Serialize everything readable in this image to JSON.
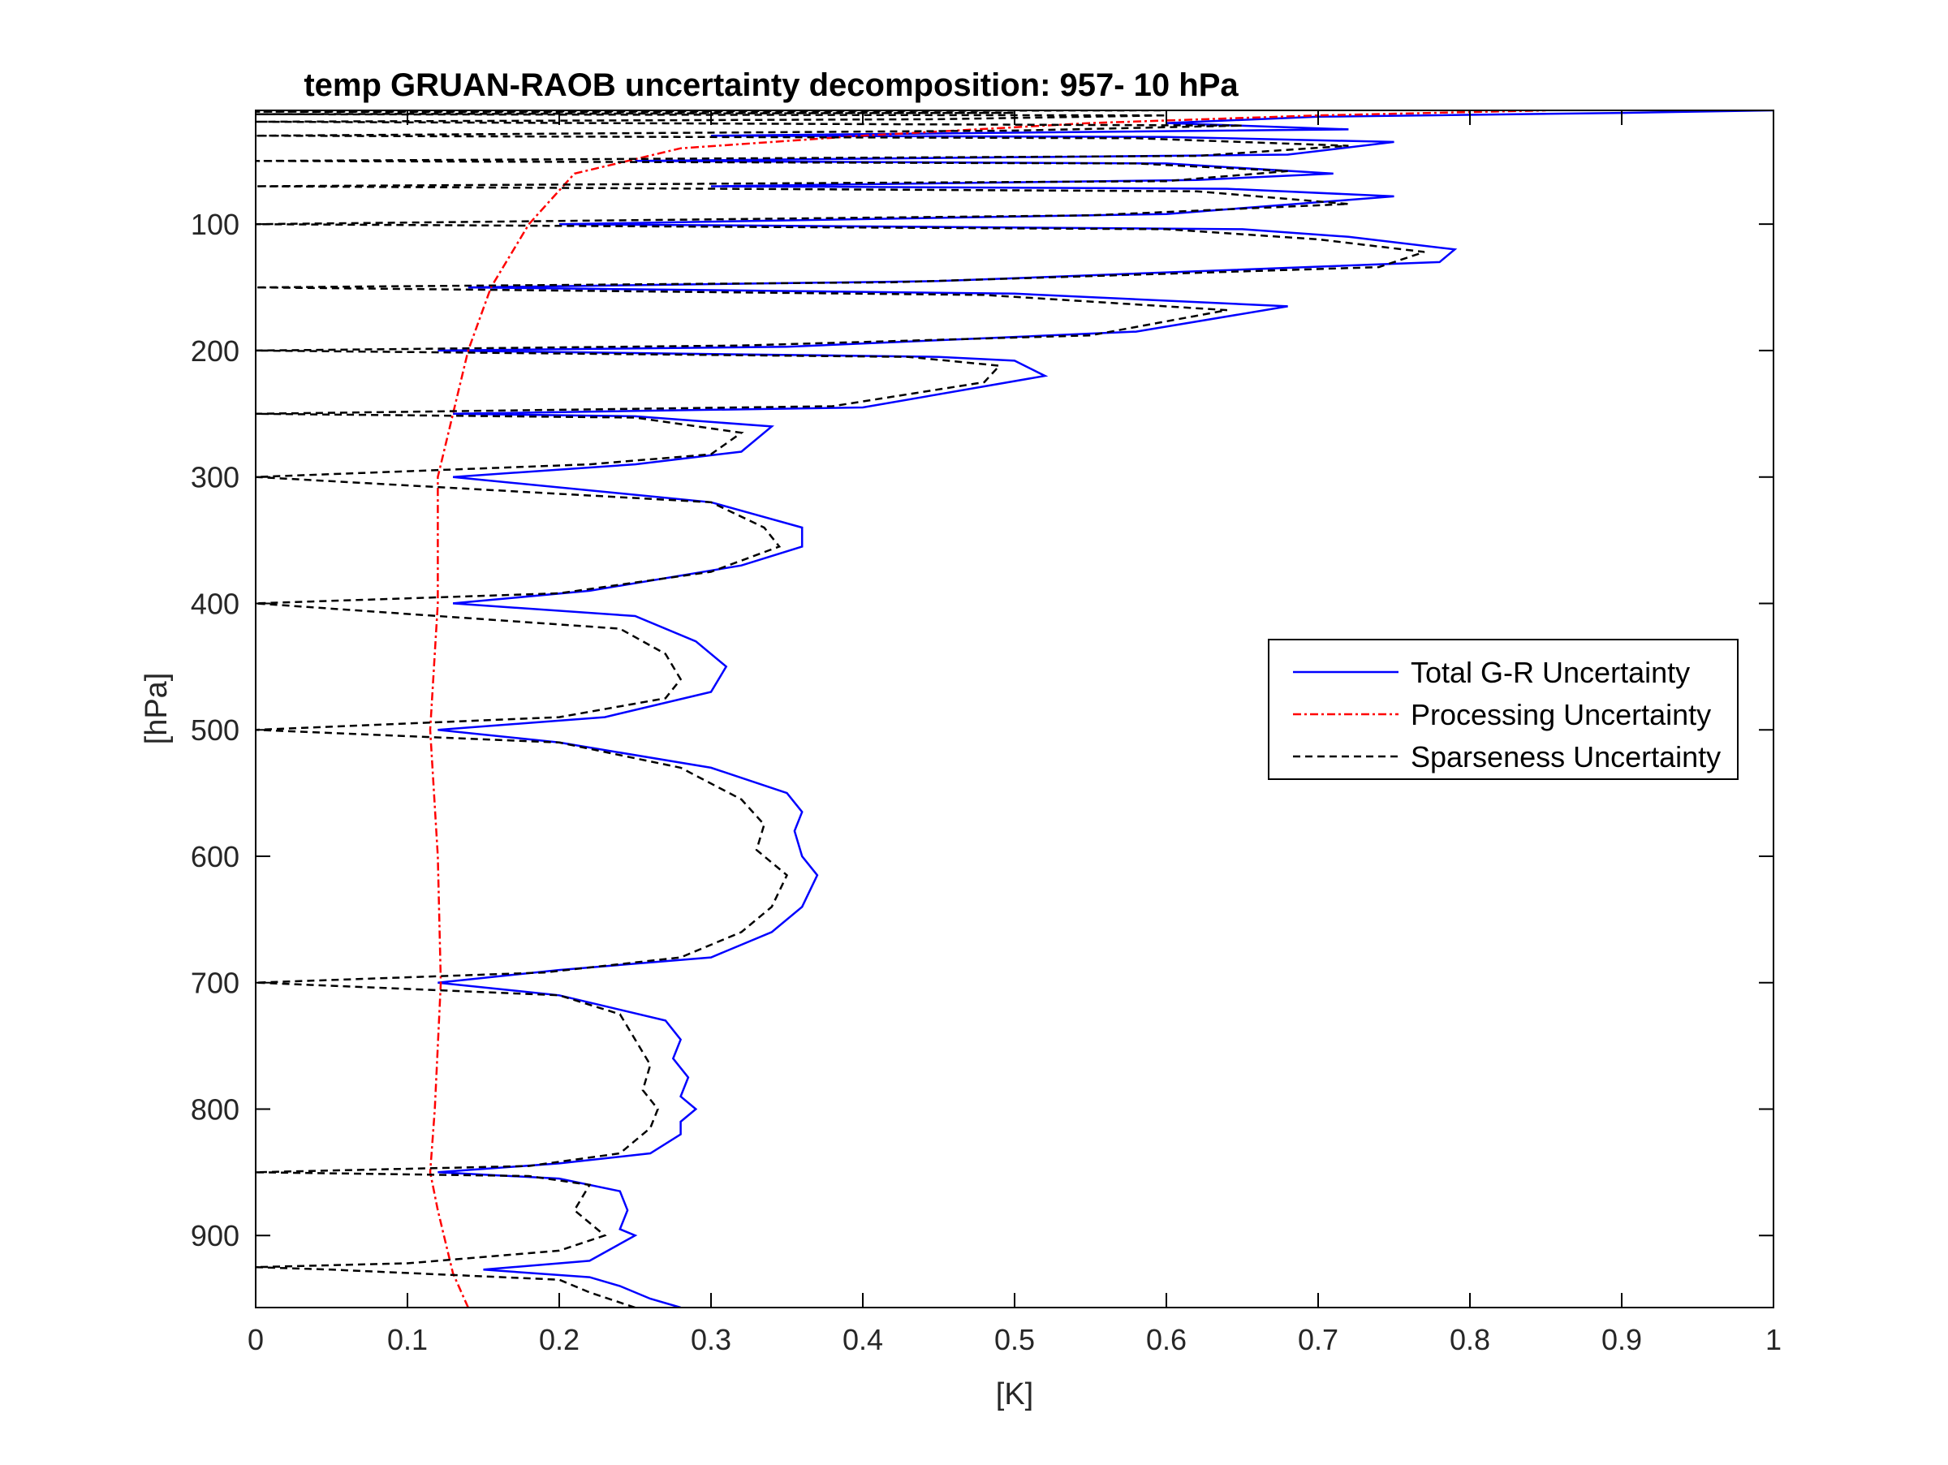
{
  "chart_data": {
    "type": "line",
    "title": "temp GRUAN-RAOB uncertainty decomposition:   957-  10 hPa",
    "xlabel": "[K]",
    "ylabel": "[hPa]",
    "xlim": [
      0,
      1
    ],
    "ylim": [
      10,
      957
    ],
    "y_reversed": true,
    "grid": false,
    "legend_position": "right-center",
    "xticks": [
      0,
      0.1,
      0.2,
      0.3,
      0.4,
      0.5,
      0.6,
      0.7,
      0.8,
      0.9,
      1
    ],
    "xtick_labels": [
      "0",
      "0.1",
      "0.2",
      "0.3",
      "0.4",
      "0.5",
      "0.6",
      "0.7",
      "0.8",
      "0.9",
      "1"
    ],
    "yticks": [
      100,
      200,
      300,
      400,
      500,
      600,
      700,
      800,
      900
    ],
    "ytick_labels": [
      "100",
      "200",
      "300",
      "400",
      "500",
      "600",
      "700",
      "800",
      "900"
    ],
    "series": [
      {
        "name": "Total G-R Uncertainty",
        "color": "#0000ff",
        "style": "solid",
        "points": [
          [
            0.28,
            957
          ],
          [
            0.26,
            950
          ],
          [
            0.24,
            940
          ],
          [
            0.22,
            933
          ],
          [
            0.15,
            927
          ],
          [
            0.22,
            920
          ],
          [
            0.25,
            900
          ],
          [
            0.24,
            895
          ],
          [
            0.245,
            880
          ],
          [
            0.24,
            865
          ],
          [
            0.2,
            855
          ],
          [
            0.12,
            850
          ],
          [
            0.2,
            843
          ],
          [
            0.26,
            835
          ],
          [
            0.28,
            820
          ],
          [
            0.28,
            810
          ],
          [
            0.29,
            800
          ],
          [
            0.28,
            790
          ],
          [
            0.285,
            775
          ],
          [
            0.275,
            760
          ],
          [
            0.28,
            745
          ],
          [
            0.27,
            730
          ],
          [
            0.2,
            710
          ],
          [
            0.12,
            700
          ],
          [
            0.2,
            690
          ],
          [
            0.3,
            680
          ],
          [
            0.34,
            660
          ],
          [
            0.36,
            640
          ],
          [
            0.37,
            615
          ],
          [
            0.36,
            600
          ],
          [
            0.355,
            580
          ],
          [
            0.36,
            565
          ],
          [
            0.35,
            550
          ],
          [
            0.3,
            530
          ],
          [
            0.2,
            510
          ],
          [
            0.12,
            500
          ],
          [
            0.23,
            490
          ],
          [
            0.3,
            470
          ],
          [
            0.31,
            450
          ],
          [
            0.29,
            430
          ],
          [
            0.25,
            410
          ],
          [
            0.13,
            400
          ],
          [
            0.22,
            390
          ],
          [
            0.32,
            370
          ],
          [
            0.36,
            355
          ],
          [
            0.36,
            340
          ],
          [
            0.3,
            320
          ],
          [
            0.13,
            300
          ],
          [
            0.25,
            290
          ],
          [
            0.32,
            280
          ],
          [
            0.34,
            260
          ],
          [
            0.25,
            252
          ],
          [
            0.13,
            250
          ],
          [
            0.4,
            245
          ],
          [
            0.52,
            220
          ],
          [
            0.5,
            208
          ],
          [
            0.45,
            205
          ],
          [
            0.12,
            200
          ],
          [
            0.35,
            197
          ],
          [
            0.58,
            185
          ],
          [
            0.68,
            165
          ],
          [
            0.5,
            155
          ],
          [
            0.14,
            150
          ],
          [
            0.45,
            145
          ],
          [
            0.78,
            130
          ],
          [
            0.79,
            120
          ],
          [
            0.72,
            110
          ],
          [
            0.65,
            104
          ],
          [
            0.2,
            100
          ],
          [
            0.6,
            92
          ],
          [
            0.75,
            78
          ],
          [
            0.64,
            72
          ],
          [
            0.3,
            70
          ],
          [
            0.62,
            65
          ],
          [
            0.71,
            60
          ],
          [
            0.6,
            52
          ],
          [
            0.25,
            50
          ],
          [
            0.68,
            45
          ],
          [
            0.75,
            35
          ],
          [
            0.6,
            31
          ],
          [
            0.3,
            30
          ],
          [
            0.72,
            25
          ],
          [
            0.6,
            20
          ],
          [
            0.7,
            15
          ],
          [
            0.9,
            12
          ],
          [
            1.0,
            10
          ]
        ]
      },
      {
        "name": "Processing Uncertainty",
        "color": "#ff0000",
        "style": "dash-dot",
        "points": [
          [
            0.14,
            957
          ],
          [
            0.13,
            930
          ],
          [
            0.12,
            880
          ],
          [
            0.115,
            850
          ],
          [
            0.118,
            800
          ],
          [
            0.12,
            750
          ],
          [
            0.122,
            700
          ],
          [
            0.12,
            600
          ],
          [
            0.115,
            500
          ],
          [
            0.12,
            400
          ],
          [
            0.12,
            300
          ],
          [
            0.13,
            250
          ],
          [
            0.14,
            200
          ],
          [
            0.155,
            150
          ],
          [
            0.18,
            100
          ],
          [
            0.21,
            60
          ],
          [
            0.28,
            40
          ],
          [
            0.4,
            30
          ],
          [
            0.55,
            20
          ],
          [
            0.7,
            14
          ],
          [
            0.85,
            10
          ]
        ]
      },
      {
        "name": "Sparseness Uncertainty",
        "color": "#000000",
        "style": "dashed",
        "points": [
          [
            0.25,
            957
          ],
          [
            0.22,
            945
          ],
          [
            0.2,
            935
          ],
          [
            0.05,
            927
          ],
          [
            0.0,
            925
          ],
          [
            0.1,
            922
          ],
          [
            0.2,
            912
          ],
          [
            0.23,
            900
          ],
          [
            0.21,
            880
          ],
          [
            0.22,
            860
          ],
          [
            0.18,
            853
          ],
          [
            0.0,
            850
          ],
          [
            0.18,
            845
          ],
          [
            0.24,
            835
          ],
          [
            0.26,
            815
          ],
          [
            0.265,
            800
          ],
          [
            0.255,
            785
          ],
          [
            0.26,
            765
          ],
          [
            0.25,
            745
          ],
          [
            0.24,
            725
          ],
          [
            0.2,
            710
          ],
          [
            0.0,
            700
          ],
          [
            0.19,
            692
          ],
          [
            0.28,
            680
          ],
          [
            0.32,
            660
          ],
          [
            0.34,
            640
          ],
          [
            0.35,
            615
          ],
          [
            0.33,
            595
          ],
          [
            0.335,
            575
          ],
          [
            0.32,
            555
          ],
          [
            0.28,
            530
          ],
          [
            0.2,
            510
          ],
          [
            0.0,
            500
          ],
          [
            0.2,
            490
          ],
          [
            0.27,
            475
          ],
          [
            0.28,
            460
          ],
          [
            0.27,
            440
          ],
          [
            0.24,
            420
          ],
          [
            0.0,
            400
          ],
          [
            0.2,
            392
          ],
          [
            0.3,
            375
          ],
          [
            0.345,
            355
          ],
          [
            0.335,
            340
          ],
          [
            0.3,
            320
          ],
          [
            0.0,
            300
          ],
          [
            0.22,
            290
          ],
          [
            0.3,
            282
          ],
          [
            0.32,
            265
          ],
          [
            0.25,
            253
          ],
          [
            0.0,
            250
          ],
          [
            0.38,
            244
          ],
          [
            0.48,
            225
          ],
          [
            0.49,
            212
          ],
          [
            0.43,
            205
          ],
          [
            0.0,
            200
          ],
          [
            0.32,
            196
          ],
          [
            0.55,
            188
          ],
          [
            0.64,
            168
          ],
          [
            0.48,
            156
          ],
          [
            0.0,
            150
          ],
          [
            0.42,
            146
          ],
          [
            0.74,
            134
          ],
          [
            0.77,
            122
          ],
          [
            0.7,
            112
          ],
          [
            0.6,
            104
          ],
          [
            0.0,
            100
          ],
          [
            0.55,
            93
          ],
          [
            0.72,
            84
          ],
          [
            0.62,
            74
          ],
          [
            0.0,
            70
          ],
          [
            0.6,
            66
          ],
          [
            0.68,
            58
          ],
          [
            0.58,
            52
          ],
          [
            0.0,
            50
          ],
          [
            0.62,
            46
          ],
          [
            0.72,
            38
          ],
          [
            0.58,
            32
          ],
          [
            0.0,
            30
          ],
          [
            0.5,
            26
          ],
          [
            0.65,
            22
          ],
          [
            0.0,
            19
          ],
          [
            0.45,
            17
          ],
          [
            0.6,
            14
          ],
          [
            0.0,
            13
          ],
          [
            0.5,
            12
          ],
          [
            0.0,
            11
          ],
          [
            0.6,
            10
          ]
        ]
      }
    ]
  }
}
